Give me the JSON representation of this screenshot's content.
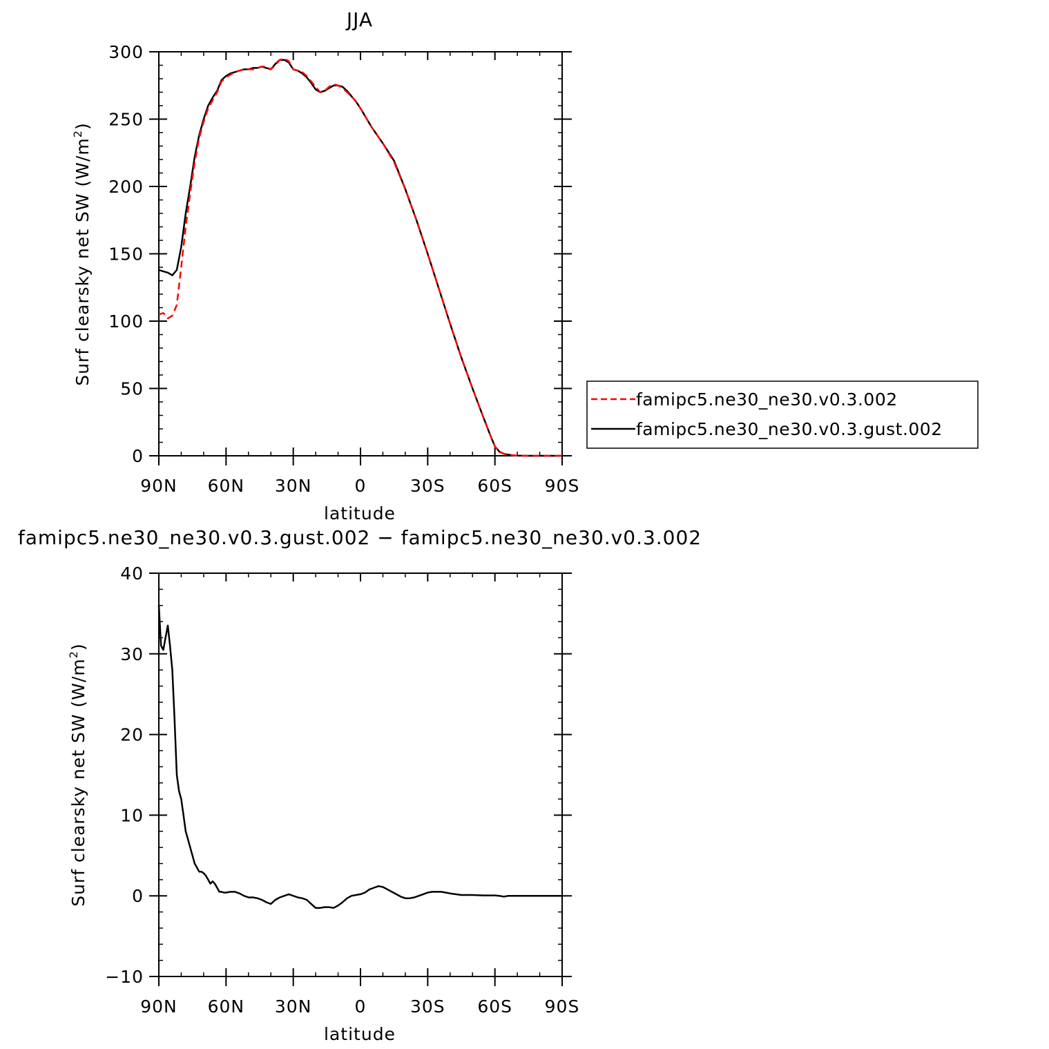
{
  "chart_data": [
    {
      "type": "line",
      "title": "JJA",
      "xlabel": "latitude",
      "ylabel": "Surf clearsky net SW (W/m",
      "ylabel_sup": "2",
      "ylabel_close": ")",
      "xlim": [
        90,
        -90
      ],
      "ylim": [
        0,
        300
      ],
      "xticks": [
        {
          "value": 90,
          "label": "90N"
        },
        {
          "value": 60,
          "label": "60N"
        },
        {
          "value": 30,
          "label": "30N"
        },
        {
          "value": 0,
          "label": "0"
        },
        {
          "value": -30,
          "label": "30S"
        },
        {
          "value": -60,
          "label": "60S"
        },
        {
          "value": -90,
          "label": "90S"
        }
      ],
      "yticks": [
        {
          "value": 0,
          "label": "0"
        },
        {
          "value": 50,
          "label": "50"
        },
        {
          "value": 100,
          "label": "100"
        },
        {
          "value": 150,
          "label": "150"
        },
        {
          "value": 200,
          "label": "200"
        },
        {
          "value": 250,
          "label": "250"
        },
        {
          "value": 300,
          "label": "300"
        }
      ],
      "legend": "right-outside",
      "series": [
        {
          "name": "famipc5.ne30_ne30.v0.3.002",
          "color": "#ff0000",
          "style": "dashed",
          "x": [
            90,
            88,
            86,
            84,
            82,
            80,
            78,
            76,
            74,
            72,
            70,
            68,
            66,
            64,
            62,
            60,
            58,
            56,
            54,
            52,
            50,
            48,
            46,
            44,
            42,
            40,
            38,
            36,
            34,
            32,
            30,
            28,
            26,
            24,
            22,
            20,
            18,
            16,
            14,
            12,
            10,
            8,
            6,
            4,
            2,
            0,
            -5,
            -10,
            -15,
            -20,
            -25,
            -30,
            -35,
            -40,
            -45,
            -50,
            -55,
            -58,
            -60,
            -62,
            -64,
            -66,
            -68,
            -70,
            -75,
            -80,
            -85,
            -90
          ],
          "y": [
            105,
            106,
            102,
            104,
            112,
            140,
            170,
            195,
            218,
            236,
            248,
            258,
            264,
            270,
            278,
            281,
            283,
            285,
            286,
            287,
            287,
            287,
            288,
            289,
            289,
            287,
            290,
            294,
            295,
            293,
            287,
            286,
            285,
            282,
            278,
            274,
            270,
            271,
            274,
            276,
            275,
            273,
            270,
            267,
            263,
            258,
            244,
            232,
            218,
            198,
            175,
            150,
            124,
            98,
            73,
            50,
            28,
            15,
            7,
            3,
            1.5,
            0.8,
            0.3,
            0.1,
            0,
            0,
            0,
            0
          ]
        },
        {
          "name": "famipc5.ne30_ne30.v0.3.gust.002",
          "color": "#000000",
          "style": "solid",
          "x": [
            90,
            88,
            86,
            84,
            82,
            80,
            78,
            76,
            74,
            72,
            70,
            68,
            66,
            64,
            62,
            60,
            58,
            56,
            54,
            52,
            50,
            48,
            46,
            44,
            42,
            40,
            38,
            36,
            34,
            32,
            30,
            28,
            26,
            24,
            22,
            20,
            18,
            16,
            14,
            12,
            10,
            8,
            6,
            4,
            2,
            0,
            -5,
            -10,
            -15,
            -20,
            -25,
            -30,
            -35,
            -40,
            -45,
            -50,
            -55,
            -58,
            -60,
            -62,
            -64,
            -66,
            -68,
            -70,
            -75,
            -80,
            -85,
            -90
          ],
          "y": [
            138,
            137,
            136,
            134,
            138,
            155,
            180,
            200,
            222,
            238,
            250,
            260,
            266,
            271,
            279,
            282,
            284,
            285,
            286,
            287,
            287,
            288,
            288,
            289,
            288,
            287,
            291,
            294,
            294,
            292,
            287,
            286,
            284,
            281,
            277,
            272,
            270,
            271,
            273,
            275,
            275,
            274,
            271,
            267,
            263,
            258,
            244,
            232,
            219,
            198,
            175,
            150,
            124,
            98,
            73,
            50,
            28,
            15,
            7,
            3,
            1.5,
            0.8,
            0.3,
            0.1,
            0,
            0,
            0,
            0
          ]
        }
      ]
    },
    {
      "type": "line",
      "title": "famipc5.ne30_ne30.v0.3.gust.002 − famipc5.ne30_ne30.v0.3.002",
      "xlabel": "latitude",
      "ylabel": "Surf clearsky net SW (W/m",
      "ylabel_sup": "2",
      "ylabel_close": ")",
      "xlim": [
        90,
        -90
      ],
      "ylim": [
        -10,
        40
      ],
      "xticks": [
        {
          "value": 90,
          "label": "90N"
        },
        {
          "value": 60,
          "label": "60N"
        },
        {
          "value": 30,
          "label": "30N"
        },
        {
          "value": 0,
          "label": "0"
        },
        {
          "value": -30,
          "label": "30S"
        },
        {
          "value": -60,
          "label": "60S"
        },
        {
          "value": -90,
          "label": "90S"
        }
      ],
      "yticks": [
        {
          "value": -10,
          "label": "−10"
        },
        {
          "value": 0,
          "label": "0"
        },
        {
          "value": 10,
          "label": "10"
        },
        {
          "value": 20,
          "label": "20"
        },
        {
          "value": 30,
          "label": "30"
        },
        {
          "value": 40,
          "label": "40"
        }
      ],
      "series": [
        {
          "color": "#000000",
          "style": "solid",
          "x": [
            90,
            89,
            88,
            87,
            86,
            85,
            84,
            83,
            82,
            81,
            80,
            79,
            78,
            77,
            76,
            75,
            74,
            73,
            72,
            71,
            70,
            69,
            68,
            67,
            66,
            65,
            64,
            63,
            62,
            61,
            60,
            58,
            56,
            54,
            52,
            50,
            48,
            46,
            44,
            42,
            40,
            38,
            36,
            34,
            32,
            30,
            28,
            26,
            24,
            22,
            20,
            18,
            16,
            14,
            12,
            10,
            8,
            6,
            4,
            2,
            0,
            -2,
            -4,
            -6,
            -8,
            -10,
            -12,
            -14,
            -16,
            -18,
            -20,
            -22,
            -24,
            -26,
            -28,
            -30,
            -32,
            -34,
            -36,
            -38,
            -40,
            -45,
            -50,
            -55,
            -60,
            -62,
            -64,
            -66,
            -70,
            -75,
            -80,
            -85,
            -90
          ],
          "y": [
            36,
            31,
            30.5,
            32,
            33.5,
            31,
            28,
            22,
            15,
            13,
            12,
            10,
            8,
            7,
            6,
            5,
            4,
            3.5,
            3,
            3,
            2.8,
            2.5,
            2,
            1.5,
            1.8,
            1.5,
            1,
            0.5,
            0.5,
            0.4,
            0.4,
            0.5,
            0.5,
            0.3,
            0,
            -0.2,
            -0.2,
            -0.3,
            -0.5,
            -0.8,
            -1,
            -0.5,
            -0.2,
            0,
            0.2,
            0,
            -0.2,
            -0.3,
            -0.5,
            -1,
            -1.5,
            -1.5,
            -1.4,
            -1.4,
            -1.5,
            -1.2,
            -0.8,
            -0.3,
            0,
            0.1,
            0.2,
            0.4,
            0.8,
            1,
            1.2,
            1.1,
            0.8,
            0.5,
            0.2,
            -0.1,
            -0.3,
            -0.3,
            -0.2,
            0,
            0.2,
            0.4,
            0.5,
            0.5,
            0.5,
            0.4,
            0.3,
            0.1,
            0.1,
            0.05,
            0.05,
            0,
            -0.1,
            0,
            0,
            0,
            0,
            0,
            0
          ]
        }
      ]
    }
  ]
}
